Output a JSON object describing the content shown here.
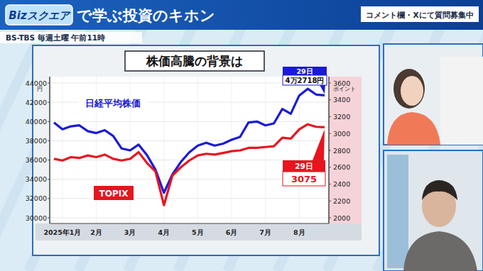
{
  "page": {
    "logo": "Bizスクエア",
    "header_title": "で学ぶ投資のキホン",
    "notice": "コメント欄・Xにて質問募集中",
    "schedule": "BS-TBS 毎週土曜 午前11時"
  },
  "chart_data": {
    "type": "line",
    "title": "株価高騰の背景は",
    "categories": [
      null,
      "2025年1月",
      null,
      null,
      null,
      "2月",
      null,
      null,
      null,
      "3月",
      null,
      null,
      null,
      "4月",
      null,
      null,
      null,
      "5月",
      null,
      null,
      null,
      "6月",
      null,
      null,
      null,
      "7月",
      null,
      null,
      null,
      "8月",
      null,
      null,
      null
    ],
    "series": [
      {
        "name": "日経平均株価",
        "color": "#1a1ad8",
        "axis": "y",
        "values": [
          39900,
          39200,
          39500,
          39600,
          39000,
          38800,
          39100,
          38500,
          37200,
          37000,
          37600,
          36500,
          35000,
          32600,
          34500,
          35800,
          36800,
          37500,
          37800,
          37500,
          37700,
          38100,
          38400,
          39900,
          40000,
          39600,
          39800,
          41300,
          40800,
          42700,
          43400,
          42800,
          42718
        ]
      },
      {
        "name": "TOPIX",
        "color": "#e8141e",
        "axis": "y2",
        "values": [
          2700,
          2680,
          2720,
          2710,
          2740,
          2720,
          2750,
          2700,
          2680,
          2700,
          2780,
          2650,
          2550,
          2150,
          2500,
          2600,
          2680,
          2740,
          2760,
          2750,
          2770,
          2790,
          2800,
          2830,
          2830,
          2840,
          2850,
          2950,
          2940,
          3050,
          3110,
          3080,
          3075
        ]
      }
    ],
    "ylabel": "円",
    "y2label": "ポイント",
    "ylim": [
      30000,
      44000
    ],
    "yticks": [
      30000,
      32000,
      34000,
      36000,
      38000,
      40000,
      42000,
      44000
    ],
    "y2lim": [
      2000,
      3600
    ],
    "y2ticks": [
      2000,
      2200,
      2400,
      2600,
      2800,
      3000,
      3200,
      3400,
      3600
    ],
    "grid": true,
    "annotations": [
      {
        "label": "29日",
        "text": "4万2718円"
      },
      {
        "label": "29日",
        "text": "3075"
      }
    ]
  }
}
